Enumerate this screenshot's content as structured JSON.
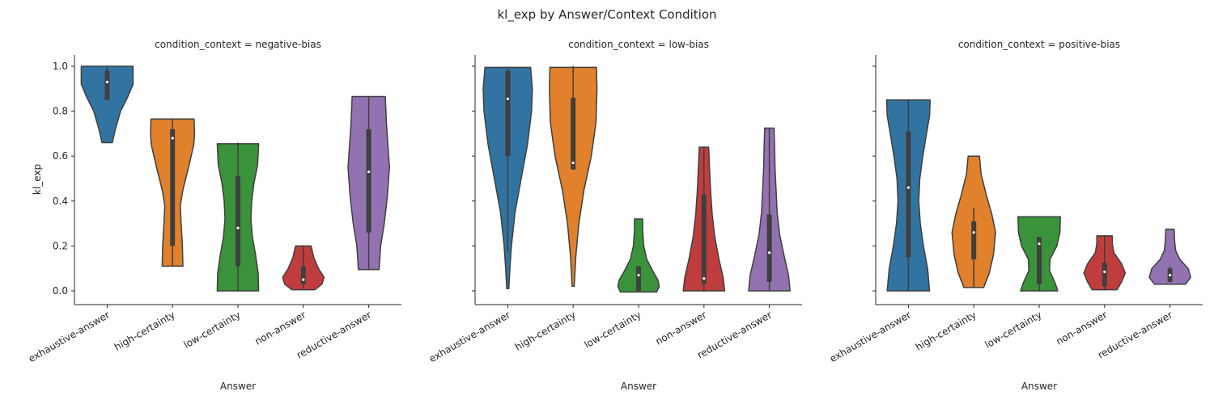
{
  "figure": {
    "title": "kl_exp by Answer/Context Condition"
  },
  "chart_data": {
    "type": "violin",
    "title": "kl_exp by Answer/Context Condition",
    "xlabel": "Answer",
    "ylabel": "kl_exp",
    "ylim": [
      -0.05,
      1.05
    ],
    "yticks": [
      "0.0",
      "0.2",
      "0.4",
      "0.6",
      "0.8",
      "1.0"
    ],
    "categories": [
      "exhaustive-answer",
      "high-certainty",
      "low-certainty",
      "non-answer",
      "reductive-answer"
    ],
    "colors": [
      "#3274a1",
      "#e1812c",
      "#3a923a",
      "#c03d3e",
      "#9372b2"
    ],
    "grid": false,
    "facets": [
      {
        "title": "condition_context = negative-bias",
        "violins": [
          {
            "category": "exhaustive-answer",
            "min": 0.66,
            "max": 1.0,
            "q1": 0.85,
            "median": 0.93,
            "q3": 0.98,
            "whisker_low": 0.85,
            "whisker_high": 1.0,
            "shape": [
              [
                0.66,
                0.2
              ],
              [
                0.72,
                0.32
              ],
              [
                0.8,
                0.52
              ],
              [
                0.86,
                0.78
              ],
              [
                0.92,
                1.0
              ],
              [
                0.96,
                1.0
              ],
              [
                1.0,
                1.0
              ]
            ]
          },
          {
            "category": "high-certainty",
            "min": 0.11,
            "max": 0.765,
            "q1": 0.2,
            "median": 0.68,
            "q3": 0.72,
            "whisker_low": 0.11,
            "whisker_high": 0.765,
            "shape": [
              [
                0.11,
                0.4
              ],
              [
                0.2,
                0.38
              ],
              [
                0.3,
                0.33
              ],
              [
                0.38,
                0.3
              ],
              [
                0.45,
                0.4
              ],
              [
                0.55,
                0.62
              ],
              [
                0.65,
                0.82
              ],
              [
                0.7,
                0.85
              ],
              [
                0.765,
                0.83
              ]
            ]
          },
          {
            "category": "low-certainty",
            "min": 0.0,
            "max": 0.655,
            "q1": 0.11,
            "median": 0.28,
            "q3": 0.51,
            "whisker_low": 0.0,
            "whisker_high": 0.66,
            "shape": [
              [
                0.0,
                0.8
              ],
              [
                0.08,
                0.78
              ],
              [
                0.16,
                0.68
              ],
              [
                0.24,
                0.56
              ],
              [
                0.32,
                0.5
              ],
              [
                0.4,
                0.53
              ],
              [
                0.48,
                0.62
              ],
              [
                0.56,
                0.76
              ],
              [
                0.655,
                0.8
              ]
            ]
          },
          {
            "category": "non-answer",
            "min": 0.005,
            "max": 0.2,
            "q1": 0.03,
            "median": 0.05,
            "q3": 0.11,
            "whisker_low": 0.01,
            "whisker_high": 0.2,
            "shape": [
              [
                0.005,
                0.45
              ],
              [
                0.03,
                0.72
              ],
              [
                0.06,
                0.8
              ],
              [
                0.1,
                0.58
              ],
              [
                0.15,
                0.4
              ],
              [
                0.2,
                0.3
              ]
            ]
          },
          {
            "category": "reductive-answer",
            "min": 0.095,
            "max": 0.865,
            "q1": 0.26,
            "median": 0.53,
            "q3": 0.72,
            "whisker_low": 0.095,
            "whisker_high": 0.865,
            "shape": [
              [
                0.095,
                0.4
              ],
              [
                0.2,
                0.46
              ],
              [
                0.3,
                0.6
              ],
              [
                0.42,
                0.72
              ],
              [
                0.55,
                0.8
              ],
              [
                0.65,
                0.74
              ],
              [
                0.75,
                0.68
              ],
              [
                0.865,
                0.64
              ]
            ]
          }
        ]
      },
      {
        "title": "condition_context = low-bias",
        "violins": [
          {
            "category": "exhaustive-answer",
            "min": 0.01,
            "max": 0.995,
            "q1": 0.6,
            "median": 0.855,
            "q3": 0.98,
            "whisker_low": 0.17,
            "whisker_high": 0.99,
            "shape": [
              [
                0.01,
                0.04
              ],
              [
                0.1,
                0.08
              ],
              [
                0.2,
                0.14
              ],
              [
                0.35,
                0.28
              ],
              [
                0.5,
                0.52
              ],
              [
                0.65,
                0.76
              ],
              [
                0.8,
                0.92
              ],
              [
                0.9,
                0.95
              ],
              [
                0.995,
                0.88
              ]
            ]
          },
          {
            "category": "high-certainty",
            "min": 0.02,
            "max": 0.995,
            "q1": 0.54,
            "median": 0.57,
            "q3": 0.86,
            "whisker_low": 0.54,
            "whisker_high": 1.0,
            "shape": [
              [
                0.02,
                0.04
              ],
              [
                0.15,
                0.1
              ],
              [
                0.3,
                0.22
              ],
              [
                0.45,
                0.42
              ],
              [
                0.6,
                0.7
              ],
              [
                0.75,
                0.88
              ],
              [
                0.9,
                0.92
              ],
              [
                0.995,
                0.9
              ]
            ]
          },
          {
            "category": "low-certainty",
            "min": -0.005,
            "max": 0.32,
            "q1": 0.0,
            "median": 0.07,
            "q3": 0.11,
            "whisker_low": -0.005,
            "whisker_high": 0.11,
            "shape": [
              [
                -0.005,
                0.7
              ],
              [
                0.02,
                0.8
              ],
              [
                0.05,
                0.74
              ],
              [
                0.09,
                0.54
              ],
              [
                0.14,
                0.32
              ],
              [
                0.2,
                0.2
              ],
              [
                0.27,
                0.16
              ],
              [
                0.32,
                0.16
              ]
            ]
          },
          {
            "category": "non-answer",
            "min": 0.0,
            "max": 0.64,
            "q1": 0.03,
            "median": 0.055,
            "q3": 0.43,
            "whisker_low": 0.0,
            "whisker_high": 0.64,
            "shape": [
              [
                0.0,
                0.8
              ],
              [
                0.06,
                0.74
              ],
              [
                0.14,
                0.58
              ],
              [
                0.24,
                0.42
              ],
              [
                0.34,
                0.32
              ],
              [
                0.44,
                0.26
              ],
              [
                0.54,
                0.22
              ],
              [
                0.64,
                0.18
              ]
            ]
          },
          {
            "category": "reductive-answer",
            "min": 0.0,
            "max": 0.725,
            "q1": 0.04,
            "median": 0.17,
            "q3": 0.34,
            "whisker_low": 0.0,
            "whisker_high": 0.725,
            "shape": [
              [
                0.0,
                0.8
              ],
              [
                0.07,
                0.74
              ],
              [
                0.15,
                0.58
              ],
              [
                0.25,
                0.4
              ],
              [
                0.35,
                0.3
              ],
              [
                0.45,
                0.26
              ],
              [
                0.55,
                0.22
              ],
              [
                0.65,
                0.2
              ],
              [
                0.725,
                0.18
              ]
            ]
          }
        ]
      },
      {
        "title": "condition_context = positive-bias",
        "violins": [
          {
            "category": "exhaustive-answer",
            "min": 0.0,
            "max": 0.85,
            "q1": 0.15,
            "median": 0.46,
            "q3": 0.71,
            "whisker_low": 0.0,
            "whisker_high": 0.85,
            "shape": [
              [
                0.0,
                0.82
              ],
              [
                0.1,
                0.74
              ],
              [
                0.2,
                0.58
              ],
              [
                0.3,
                0.46
              ],
              [
                0.4,
                0.4
              ],
              [
                0.5,
                0.44
              ],
              [
                0.6,
                0.56
              ],
              [
                0.7,
                0.7
              ],
              [
                0.78,
                0.82
              ],
              [
                0.85,
                0.84
              ]
            ]
          },
          {
            "category": "high-certainty",
            "min": 0.015,
            "max": 0.6,
            "q1": 0.14,
            "median": 0.26,
            "q3": 0.31,
            "whisker_low": 0.015,
            "whisker_high": 0.37,
            "shape": [
              [
                0.015,
                0.38
              ],
              [
                0.08,
                0.6
              ],
              [
                0.16,
                0.76
              ],
              [
                0.26,
                0.84
              ],
              [
                0.34,
                0.7
              ],
              [
                0.42,
                0.5
              ],
              [
                0.52,
                0.28
              ],
              [
                0.6,
                0.22
              ]
            ]
          },
          {
            "category": "low-certainty",
            "min": 0.0,
            "max": 0.33,
            "q1": 0.03,
            "median": 0.21,
            "q3": 0.24,
            "whisker_low": 0.0,
            "whisker_high": 0.24,
            "shape": [
              [
                0.0,
                0.72
              ],
              [
                0.04,
                0.6
              ],
              [
                0.09,
                0.4
              ],
              [
                0.14,
                0.42
              ],
              [
                0.2,
                0.68
              ],
              [
                0.26,
                0.8
              ],
              [
                0.33,
                0.82
              ]
            ]
          },
          {
            "category": "non-answer",
            "min": 0.005,
            "max": 0.245,
            "q1": 0.02,
            "median": 0.085,
            "q3": 0.125,
            "whisker_low": 0.005,
            "whisker_high": 0.245,
            "shape": [
              [
                0.005,
                0.48
              ],
              [
                0.04,
                0.66
              ],
              [
                0.08,
                0.8
              ],
              [
                0.12,
                0.66
              ],
              [
                0.17,
                0.36
              ],
              [
                0.21,
                0.3
              ],
              [
                0.245,
                0.3
              ]
            ]
          },
          {
            "category": "reductive-answer",
            "min": 0.03,
            "max": 0.275,
            "q1": 0.04,
            "median": 0.07,
            "q3": 0.1,
            "whisker_low": 0.04,
            "whisker_high": 0.11,
            "shape": [
              [
                0.03,
                0.6
              ],
              [
                0.06,
                0.8
              ],
              [
                0.1,
                0.7
              ],
              [
                0.14,
                0.38
              ],
              [
                0.18,
                0.22
              ],
              [
                0.22,
                0.18
              ],
              [
                0.275,
                0.16
              ]
            ]
          }
        ]
      }
    ]
  }
}
